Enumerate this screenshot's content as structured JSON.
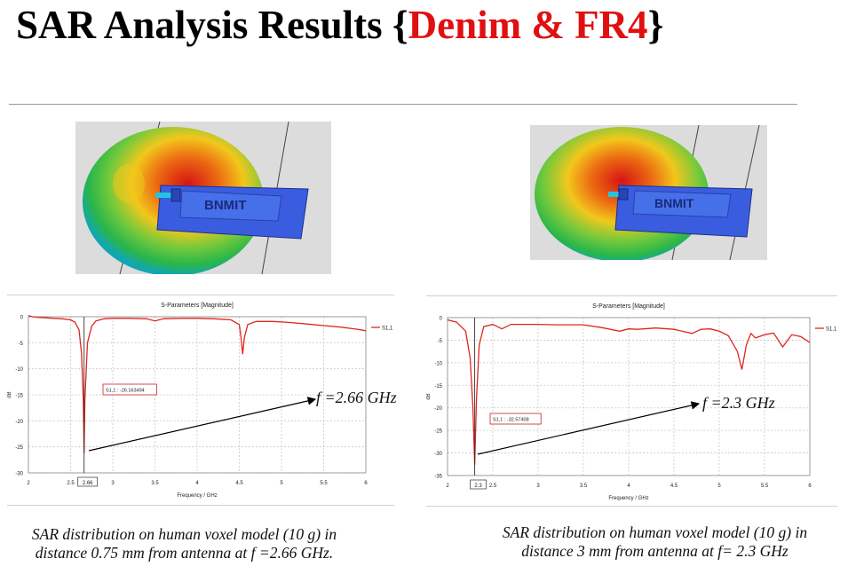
{
  "title": {
    "main": "SAR Analysis Results ",
    "open": "{",
    "highlight": "Denim & FR4",
    "close": "}"
  },
  "left_image": {
    "logo_text": "BNMIT"
  },
  "right_image": {
    "logo_text": "BNMIT"
  },
  "chart_data": [
    {
      "type": "line",
      "title": "S-Parameters [Magnitude]",
      "xlabel": "Frequency / GHz",
      "ylabel": "dB",
      "xlim": [
        2,
        6
      ],
      "ylim": [
        -30,
        0
      ],
      "xticks": [
        "2",
        "2.5",
        "3",
        "3.5",
        "4",
        "4.5",
        "5",
        "5.5",
        "6"
      ],
      "yticks": [
        "0",
        "-5",
        "-10",
        "-15",
        "-20",
        "-25",
        "-30"
      ],
      "marker_x_label": "2.66",
      "grid": true,
      "legend": "top-right",
      "series": [
        {
          "name": "S1,1",
          "color": "#e0251f",
          "x": [
            2,
            2.05,
            2.1,
            2.2,
            2.3,
            2.4,
            2.5,
            2.55,
            2.6,
            2.63,
            2.65,
            2.66,
            2.67,
            2.7,
            2.75,
            2.8,
            2.9,
            3.0,
            3.2,
            3.4,
            3.5,
            3.6,
            3.8,
            4.0,
            4.2,
            4.4,
            4.5,
            4.52,
            4.54,
            4.56,
            4.6,
            4.7,
            4.9,
            5.1,
            5.3,
            5.5,
            5.7,
            5.9,
            6.0
          ],
          "values": [
            0.2,
            0.0,
            -0.1,
            -0.2,
            -0.3,
            -0.4,
            -0.6,
            -1.0,
            -2.5,
            -7.0,
            -16.0,
            -26.2,
            -16.0,
            -5.0,
            -1.8,
            -0.8,
            -0.4,
            -0.3,
            -0.3,
            -0.4,
            -0.8,
            -0.4,
            -0.3,
            -0.3,
            -0.4,
            -0.6,
            -1.5,
            -4.0,
            -7.2,
            -4.0,
            -1.5,
            -0.9,
            -0.9,
            -1.1,
            -1.4,
            -1.7,
            -2.0,
            -2.4,
            -2.7
          ]
        }
      ],
      "annotations": [
        {
          "text": "S1,1 : -26.163494"
        },
        {
          "text": "f =2.66 GHz"
        }
      ]
    },
    {
      "type": "line",
      "title": "S-Parameters [Magnitude]",
      "xlabel": "Frequency / GHz",
      "ylabel": "dB",
      "xlim": [
        2,
        6
      ],
      "ylim": [
        -35,
        0
      ],
      "xticks": [
        "2",
        "2.5",
        "3",
        "3.5",
        "4",
        "4.5",
        "5",
        "5.5",
        "6"
      ],
      "yticks": [
        "0",
        "-5",
        "-10",
        "-15",
        "-20",
        "-25",
        "-30",
        "-35"
      ],
      "marker_x_label": "2.3",
      "grid": true,
      "legend": "top-right",
      "series": [
        {
          "name": "S1,1",
          "color": "#e0251f",
          "x": [
            2,
            2.1,
            2.2,
            2.25,
            2.28,
            2.3,
            2.32,
            2.35,
            2.4,
            2.5,
            2.6,
            2.7,
            2.8,
            3.0,
            3.2,
            3.5,
            3.7,
            3.9,
            4.0,
            4.1,
            4.3,
            4.5,
            4.7,
            4.8,
            4.9,
            5.0,
            5.1,
            5.2,
            5.25,
            5.3,
            5.35,
            5.4,
            5.5,
            5.6,
            5.7,
            5.8,
            5.9,
            6.0
          ],
          "values": [
            -0.5,
            -1.0,
            -3.0,
            -9.0,
            -20.0,
            -32.6,
            -18.0,
            -6.0,
            -2.0,
            -1.5,
            -2.5,
            -1.5,
            -1.5,
            -1.5,
            -1.6,
            -1.6,
            -2.2,
            -3.0,
            -2.5,
            -2.6,
            -2.3,
            -2.6,
            -3.5,
            -2.6,
            -2.5,
            -3.0,
            -4.0,
            -7.5,
            -11.5,
            -6.0,
            -3.5,
            -4.5,
            -3.8,
            -3.4,
            -6.5,
            -3.8,
            -4.2,
            -5.5
          ]
        }
      ],
      "annotations": [
        {
          "text": "S1,1 : -32.57408"
        },
        {
          "text": "f =2.3 GHz"
        }
      ]
    }
  ],
  "captions": {
    "left": "SAR distribution on human voxel model (10 g) in distance 0.75 mm from antenna at f =2.66 GHz.",
    "right": "SAR distribution on human voxel model (10 g) in distance 3 mm from antenna at f= 2.3 GHz"
  }
}
